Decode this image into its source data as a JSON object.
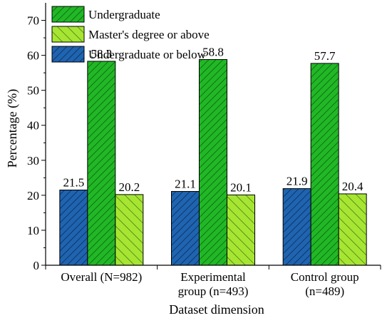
{
  "chart_data": {
    "type": "bar",
    "xlabel": "Dataset dimension",
    "ylabel": "Percentage (%)",
    "ylim": [
      0,
      75
    ],
    "yticks": [
      0,
      10,
      20,
      30,
      40,
      50,
      60,
      70
    ],
    "grid": false,
    "legend_position": "top-left",
    "categories": [
      [
        "Overall (N=982)"
      ],
      [
        "Experimental",
        "group (n=493)"
      ],
      [
        "Control group",
        "(n=489)"
      ]
    ],
    "series": [
      {
        "name": "Undergraduate or below",
        "values": [
          21.5,
          21.1,
          21.9
        ],
        "color": "#1f64b0",
        "pattern": "hatch-dense"
      },
      {
        "name": "Undergraduate",
        "values": [
          58.3,
          58.8,
          57.7
        ],
        "color": "#21b826",
        "pattern": "hatch-dense"
      },
      {
        "name": "Master's degree or above",
        "values": [
          20.2,
          20.1,
          20.4
        ],
        "color": "#a6e633",
        "pattern": "hatch-sparse"
      }
    ],
    "legend_order": [
      1,
      2,
      0
    ]
  }
}
